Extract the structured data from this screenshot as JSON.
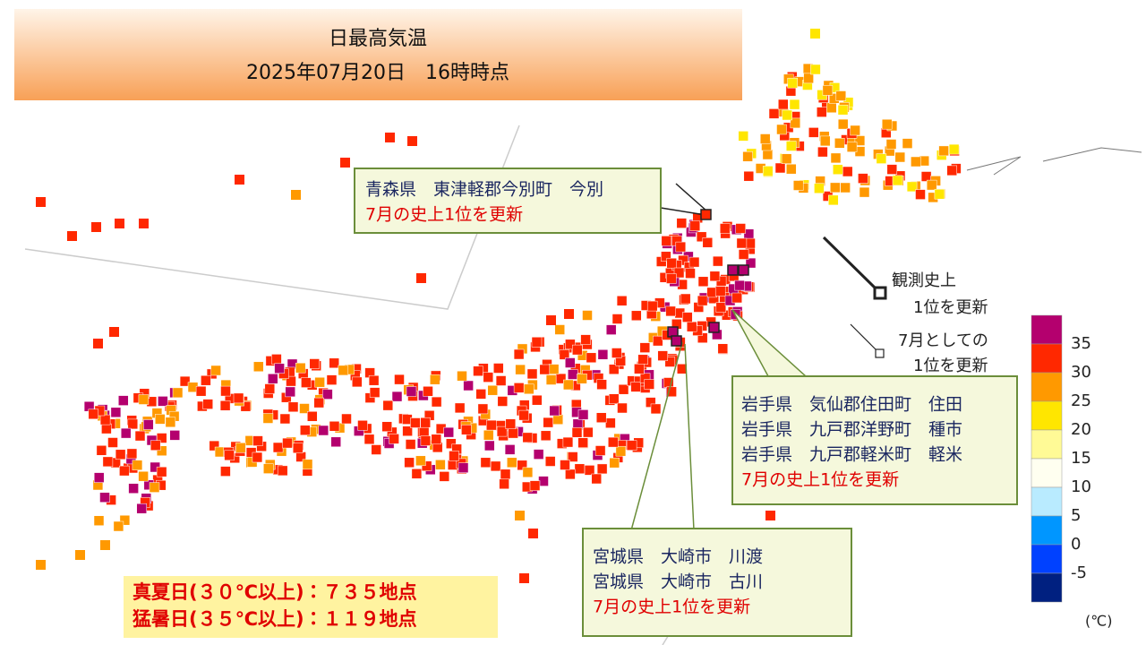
{
  "header": {
    "title": "日最高気温",
    "subtitle": "2025年07月20日　16時時点"
  },
  "callouts": [
    {
      "lines": [
        "青森県　東津軽郡今別町　今別"
      ],
      "note": "7月の史上1位を更新"
    },
    {
      "lines": [
        "岩手県　気仙郡住田町　住田",
        "岩手県　九戸郡洋野町　種市",
        "岩手県　九戸郡軽米町　軽米"
      ],
      "note": "7月の史上1位を更新"
    },
    {
      "lines": [
        "宮城県　大崎市　川渡",
        "宮城県　大崎市　古川"
      ],
      "note": "7月の史上1位を更新"
    }
  ],
  "legend_symbols": [
    {
      "lines": [
        "観測史上",
        "1位を更新"
      ]
    },
    {
      "lines": [
        "7月としての",
        "1位を更新"
      ]
    }
  ],
  "color_scale": {
    "colors": [
      "#b4006e",
      "#ff2800",
      "#ff9900",
      "#ffe600",
      "#fffa96",
      "#fffff0",
      "#b9ebff",
      "#0096ff",
      "#0041ff",
      "#002080"
    ],
    "ticks": [
      35,
      30,
      25,
      20,
      15,
      10,
      5,
      0,
      -5
    ],
    "unit": "(℃)"
  },
  "summary": [
    "真夏日(３０℃以上)：７３５地点",
    "猛暑日(３５℃以上)：１１９地点"
  ]
}
